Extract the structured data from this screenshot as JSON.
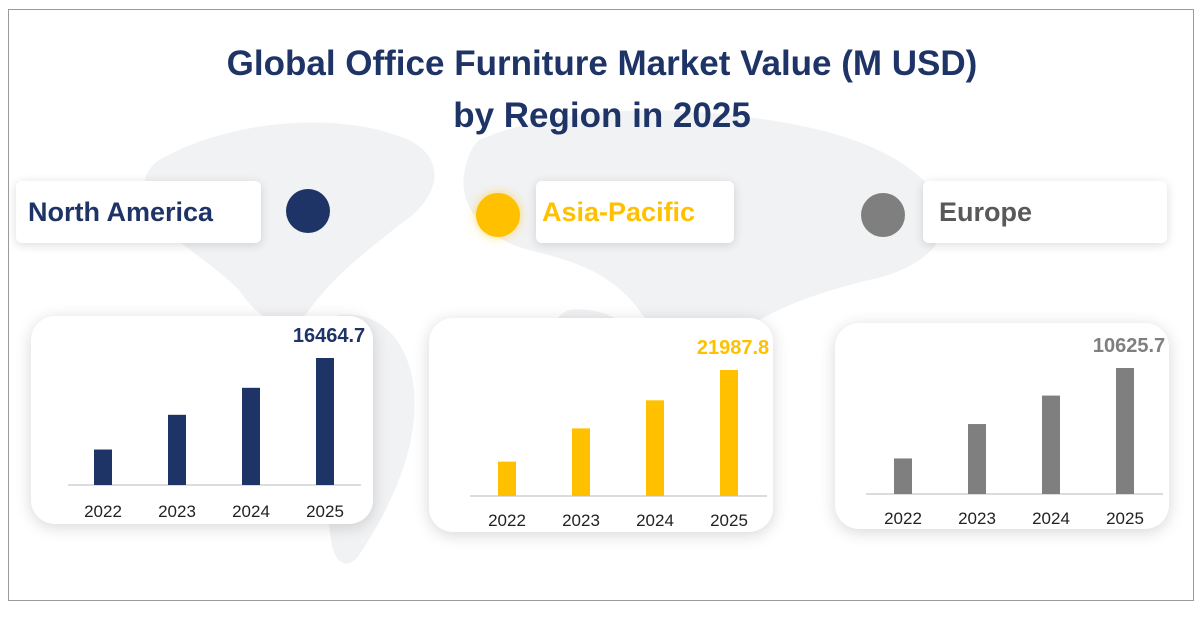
{
  "title": {
    "line1": "Global Office Furniture Market Value (M USD)",
    "line2": "by Region in 2025"
  },
  "colors": {
    "title": "#1f3466",
    "north_america": "#1f3466",
    "asia_pacific": "#ffc000",
    "europe": "#7f7f7f"
  },
  "chart_data": [
    {
      "type": "bar",
      "title": "North America",
      "color": "#1f3466",
      "categories": [
        "2022",
        "2023",
        "2024",
        "2025"
      ],
      "values": [
        4600,
        9100,
        12600,
        16464.7
      ],
      "data_labels": [
        "",
        "",
        "",
        "16464.7"
      ],
      "ylim": [
        0,
        16464.7
      ],
      "grid": false,
      "legend": "none"
    },
    {
      "type": "bar",
      "title": "Asia-Pacific",
      "color": "#ffc000",
      "categories": [
        "2022",
        "2023",
        "2024",
        "2025"
      ],
      "values": [
        6000,
        11800,
        16700,
        21987.8
      ],
      "data_labels": [
        "",
        "",
        "",
        "21987.8"
      ],
      "ylim": [
        0,
        21987.8
      ],
      "grid": false,
      "legend": "none"
    },
    {
      "type": "bar",
      "title": "Europe",
      "color": "#7f7f7f",
      "categories": [
        "2022",
        "2023",
        "2024",
        "2025"
      ],
      "values": [
        3000,
        5900,
        8300,
        10625.7
      ],
      "data_labels": [
        "",
        "",
        "",
        "10625.7"
      ],
      "ylim": [
        0,
        10625.7
      ],
      "grid": false,
      "legend": "none"
    }
  ]
}
